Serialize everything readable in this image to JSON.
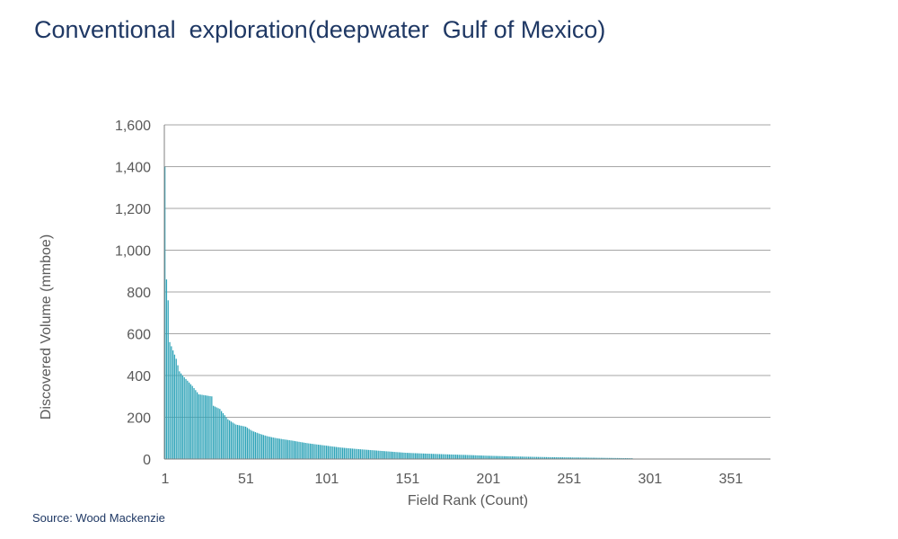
{
  "header": {
    "title": "Conventional  exploration(deepwater  Gulf of Mexico)"
  },
  "footer": {
    "source": "Source: Wood Mackenzie"
  },
  "colors": {
    "bar": "#2fa4b8",
    "grid": "#a6a6a6",
    "title": "#1f3864",
    "axis_text": "#595959"
  },
  "chart_data": {
    "type": "bar",
    "title": "Conventional  exploration(deepwater  Gulf of Mexico)",
    "xlabel": "Field Rank (Count)",
    "ylabel": "Discovered Volume (mmboe)",
    "ylim": [
      0,
      1600
    ],
    "xlim": [
      1,
      375
    ],
    "yticks": [
      "0",
      "200",
      "400",
      "600",
      "800",
      "1,000",
      "1,200",
      "1,400",
      "1,600"
    ],
    "xticks": [
      "1",
      "51",
      "101",
      "151",
      "201",
      "251",
      "301",
      "351"
    ],
    "grid": true,
    "series_count": 290,
    "anchor_values": [
      [
        1,
        1400
      ],
      [
        2,
        860
      ],
      [
        3,
        760
      ],
      [
        4,
        560
      ],
      [
        5,
        540
      ],
      [
        6,
        520
      ],
      [
        7,
        500
      ],
      [
        8,
        480
      ],
      [
        10,
        420
      ],
      [
        12,
        400
      ],
      [
        15,
        375
      ],
      [
        18,
        350
      ],
      [
        20,
        330
      ],
      [
        22,
        310
      ],
      [
        30,
        300
      ],
      [
        31,
        255
      ],
      [
        35,
        240
      ],
      [
        38,
        210
      ],
      [
        40,
        190
      ],
      [
        45,
        165
      ],
      [
        51,
        155
      ],
      [
        55,
        135
      ],
      [
        60,
        120
      ],
      [
        65,
        108
      ],
      [
        70,
        100
      ],
      [
        80,
        88
      ],
      [
        90,
        75
      ],
      [
        100,
        65
      ],
      [
        110,
        55
      ],
      [
        120,
        48
      ],
      [
        130,
        42
      ],
      [
        140,
        36
      ],
      [
        150,
        30
      ],
      [
        170,
        24
      ],
      [
        190,
        19
      ],
      [
        200,
        16
      ],
      [
        220,
        12
      ],
      [
        240,
        9
      ],
      [
        260,
        7
      ],
      [
        280,
        5
      ],
      [
        290,
        4
      ]
    ]
  }
}
